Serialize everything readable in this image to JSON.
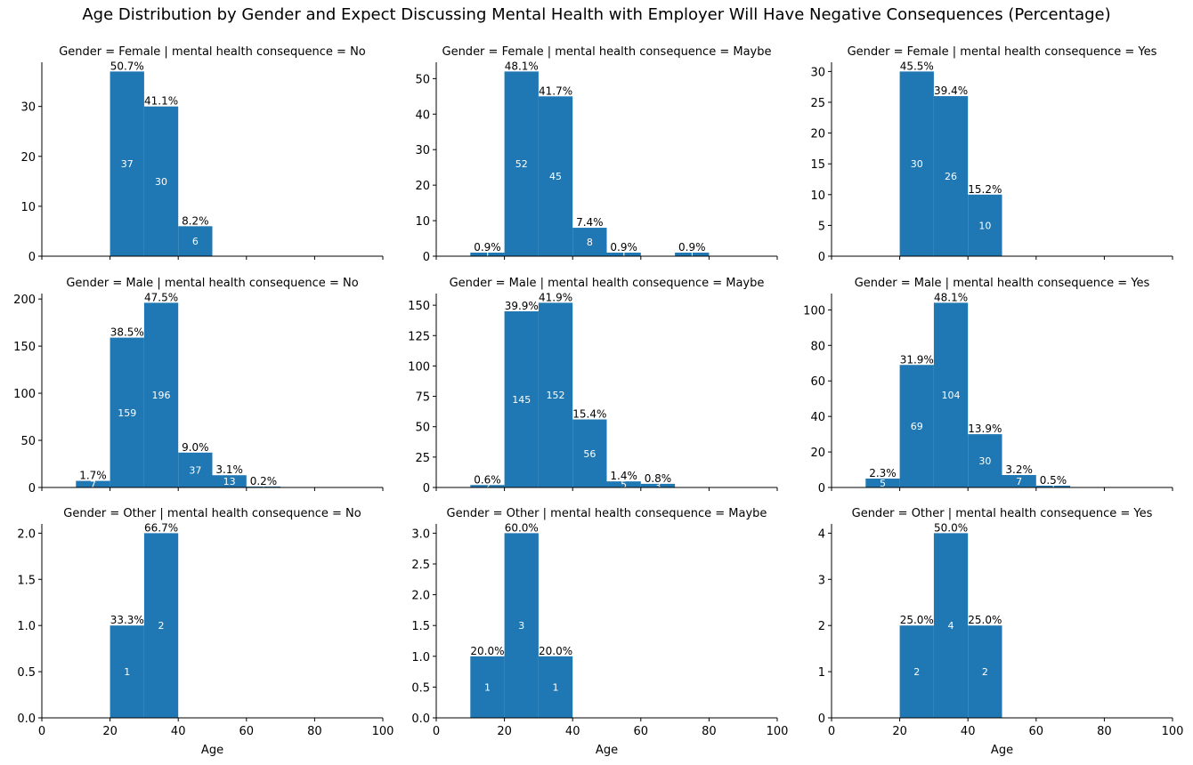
{
  "figure": {
    "title": "Age Distribution by Gender and Expect Discussing Mental Health with Employer Will Have Negative Consequences (Percentage)",
    "xlabel": "Age"
  },
  "colors": {
    "bar": "#1f77b4",
    "axis": "#000000",
    "count_label": "#ffffff",
    "pct_label": "#000000"
  },
  "chart_data": [
    {
      "type": "bar",
      "title": "Gender = Female | mental health consequence = No",
      "x": [
        20,
        30,
        40
      ],
      "bin_width": 10,
      "values": [
        37,
        30,
        6
      ],
      "percent_labels": [
        "50.7%",
        "41.1%",
        "8.2%"
      ],
      "xlim": [
        0,
        100
      ],
      "ylim": [
        0,
        38.85
      ],
      "yticks": [
        0,
        10,
        20,
        30
      ],
      "ytick_labels": [
        "0",
        "10",
        "20",
        "30"
      ],
      "xticks": [
        0,
        20,
        40,
        60,
        80,
        100
      ],
      "xtick_labels": [],
      "xlabel": ""
    },
    {
      "type": "bar",
      "title": "Gender = Female | mental health consequence = Maybe",
      "x": [
        10,
        20,
        30,
        40,
        50,
        70
      ],
      "bin_width": 10,
      "values": [
        1,
        52,
        45,
        8,
        1,
        1
      ],
      "percent_labels": [
        "0.9%",
        "48.1%",
        "41.7%",
        "7.4%",
        "0.9%",
        "0.9%"
      ],
      "xlim": [
        0,
        100
      ],
      "ylim": [
        0,
        54.6
      ],
      "yticks": [
        0,
        10,
        20,
        30,
        40,
        50
      ],
      "ytick_labels": [
        "0",
        "10",
        "20",
        "30",
        "40",
        "50"
      ],
      "xticks": [
        0,
        20,
        40,
        60,
        80,
        100
      ],
      "xtick_labels": [],
      "xlabel": ""
    },
    {
      "type": "bar",
      "title": "Gender = Female | mental health consequence = Yes",
      "x": [
        20,
        30,
        40
      ],
      "bin_width": 10,
      "values": [
        30,
        26,
        10
      ],
      "percent_labels": [
        "45.5%",
        "39.4%",
        "15.2%"
      ],
      "xlim": [
        0,
        100
      ],
      "ylim": [
        0,
        31.5
      ],
      "yticks": [
        0,
        5,
        10,
        15,
        20,
        25,
        30
      ],
      "ytick_labels": [
        "0",
        "5",
        "10",
        "15",
        "20",
        "25",
        "30"
      ],
      "xticks": [
        0,
        20,
        40,
        60,
        80,
        100
      ],
      "xtick_labels": [],
      "xlabel": ""
    },
    {
      "type": "bar",
      "title": "Gender = Male | mental health consequence = No",
      "x": [
        10,
        20,
        30,
        40,
        50,
        60
      ],
      "bin_width": 10,
      "values": [
        7,
        159,
        196,
        37,
        13,
        1
      ],
      "percent_labels": [
        "1.7%",
        "38.5%",
        "47.5%",
        "9.0%",
        "3.1%",
        "0.2%"
      ],
      "xlim": [
        0,
        100
      ],
      "ylim": [
        0,
        205.8
      ],
      "yticks": [
        0,
        50,
        100,
        150,
        200
      ],
      "ytick_labels": [
        "0",
        "50",
        "100",
        "150",
        "200"
      ],
      "xticks": [
        0,
        20,
        40,
        60,
        80,
        100
      ],
      "xtick_labels": [],
      "xlabel": ""
    },
    {
      "type": "bar",
      "title": "Gender = Male | mental health consequence = Maybe",
      "x": [
        10,
        20,
        30,
        40,
        50,
        60
      ],
      "bin_width": 10,
      "values": [
        2,
        145,
        152,
        56,
        5,
        3
      ],
      "percent_labels": [
        "0.6%",
        "39.9%",
        "41.9%",
        "15.4%",
        "1.4%",
        "0.8%"
      ],
      "xlim": [
        0,
        100
      ],
      "ylim": [
        0,
        159.6
      ],
      "yticks": [
        0,
        25,
        50,
        75,
        100,
        125,
        150
      ],
      "ytick_labels": [
        "0",
        "25",
        "50",
        "75",
        "100",
        "125",
        "150"
      ],
      "xticks": [
        0,
        20,
        40,
        60,
        80,
        100
      ],
      "xtick_labels": [],
      "xlabel": ""
    },
    {
      "type": "bar",
      "title": "Gender = Male | mental health consequence = Yes",
      "x": [
        10,
        20,
        30,
        40,
        50,
        60
      ],
      "bin_width": 10,
      "values": [
        5,
        69,
        104,
        30,
        7,
        1
      ],
      "percent_labels": [
        "2.3%",
        "31.9%",
        "48.1%",
        "13.9%",
        "3.2%",
        "0.5%"
      ],
      "xlim": [
        0,
        100
      ],
      "ylim": [
        0,
        109.2
      ],
      "yticks": [
        0,
        20,
        40,
        60,
        80,
        100
      ],
      "ytick_labels": [
        "0",
        "20",
        "40",
        "60",
        "80",
        "100"
      ],
      "xticks": [
        0,
        20,
        40,
        60,
        80,
        100
      ],
      "xtick_labels": [],
      "xlabel": ""
    },
    {
      "type": "bar",
      "title": "Gender = Other | mental health consequence = No",
      "x": [
        20,
        30
      ],
      "bin_width": 10,
      "values": [
        1,
        2
      ],
      "percent_labels": [
        "33.3%",
        "66.7%"
      ],
      "xlim": [
        0,
        100
      ],
      "ylim": [
        0,
        2.1
      ],
      "yticks": [
        0,
        0.5,
        1.0,
        1.5,
        2.0
      ],
      "ytick_labels": [
        "0.0",
        "0.5",
        "1.0",
        "1.5",
        "2.0"
      ],
      "xticks": [
        0,
        20,
        40,
        60,
        80,
        100
      ],
      "xtick_labels": [
        "0",
        "20",
        "40",
        "60",
        "80",
        "100"
      ],
      "xlabel": "Age"
    },
    {
      "type": "bar",
      "title": "Gender = Other | mental health consequence = Maybe",
      "x": [
        10,
        20,
        30
      ],
      "bin_width": 10,
      "values": [
        1,
        3,
        1
      ],
      "percent_labels": [
        "20.0%",
        "60.0%",
        "20.0%"
      ],
      "xlim": [
        0,
        100
      ],
      "ylim": [
        0,
        3.15
      ],
      "yticks": [
        0,
        0.5,
        1.0,
        1.5,
        2.0,
        2.5,
        3.0
      ],
      "ytick_labels": [
        "0.0",
        "0.5",
        "1.0",
        "1.5",
        "2.0",
        "2.5",
        "3.0"
      ],
      "xticks": [
        0,
        20,
        40,
        60,
        80,
        100
      ],
      "xtick_labels": [
        "0",
        "20",
        "40",
        "60",
        "80",
        "100"
      ],
      "xlabel": "Age"
    },
    {
      "type": "bar",
      "title": "Gender = Other | mental health consequence = Yes",
      "x": [
        20,
        30,
        40
      ],
      "bin_width": 10,
      "values": [
        2,
        4,
        2
      ],
      "percent_labels": [
        "25.0%",
        "50.0%",
        "25.0%"
      ],
      "xlim": [
        0,
        100
      ],
      "ylim": [
        0,
        4.2
      ],
      "yticks": [
        0,
        1,
        2,
        3,
        4
      ],
      "ytick_labels": [
        "0",
        "1",
        "2",
        "3",
        "4"
      ],
      "xticks": [
        0,
        20,
        40,
        60,
        80,
        100
      ],
      "xtick_labels": [
        "0",
        "20",
        "40",
        "60",
        "80",
        "100"
      ],
      "xlabel": "Age"
    }
  ]
}
